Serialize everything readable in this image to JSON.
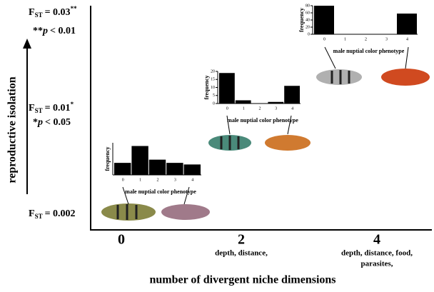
{
  "y_axis_label": "reproductive isolation",
  "x_axis_label": "number of divergent niche dimensions",
  "levels": [
    {
      "fst": {
        "symbol": "F",
        "subscript": "ST",
        "value": "= 0.03",
        "superscript": "**"
      },
      "p": {
        "prefix": "**",
        "symbol": "p",
        "value": "< 0.01"
      }
    },
    {
      "fst": {
        "symbol": "F",
        "subscript": "ST",
        "value": "= 0.01",
        "superscript": "*"
      },
      "p": {
        "prefix": "*",
        "symbol": "p",
        "value": "< 0.05"
      }
    },
    {
      "fst": {
        "symbol": "F",
        "subscript": "ST",
        "value": "= 0.002"
      }
    }
  ],
  "x_categories": [
    {
      "label": "0",
      "description": []
    },
    {
      "label": "2",
      "description": [
        "depth, distance,"
      ]
    },
    {
      "label": "4",
      "description": [
        "depth, distance, food,",
        "parasites,"
      ]
    }
  ],
  "histograms": [
    {
      "ylabel": "frequency",
      "xlabel": "male nuptial color phenotype",
      "categories": [
        "0",
        "1",
        "2",
        "3",
        "4"
      ],
      "values": [
        30,
        72,
        38,
        30,
        26
      ],
      "ylim": [
        0,
        80
      ]
    },
    {
      "ylabel": "frequency",
      "xlabel": "male nuptial color phenotype",
      "categories": [
        "0",
        "1",
        "2",
        "3",
        "4"
      ],
      "values": [
        19,
        2,
        0,
        1,
        11
      ],
      "ylim": [
        0,
        20
      ],
      "yticks": [
        0,
        5,
        10,
        15,
        20
      ]
    },
    {
      "ylabel": "frequency",
      "xlabel": "male nuptial color phenotype",
      "categories": [
        "0",
        "1",
        "2",
        "3",
        "4"
      ],
      "values": [
        80,
        0,
        0,
        0,
        58
      ],
      "ylim": [
        0,
        80
      ],
      "yticks": [
        0,
        20,
        40,
        60,
        80
      ]
    }
  ]
}
